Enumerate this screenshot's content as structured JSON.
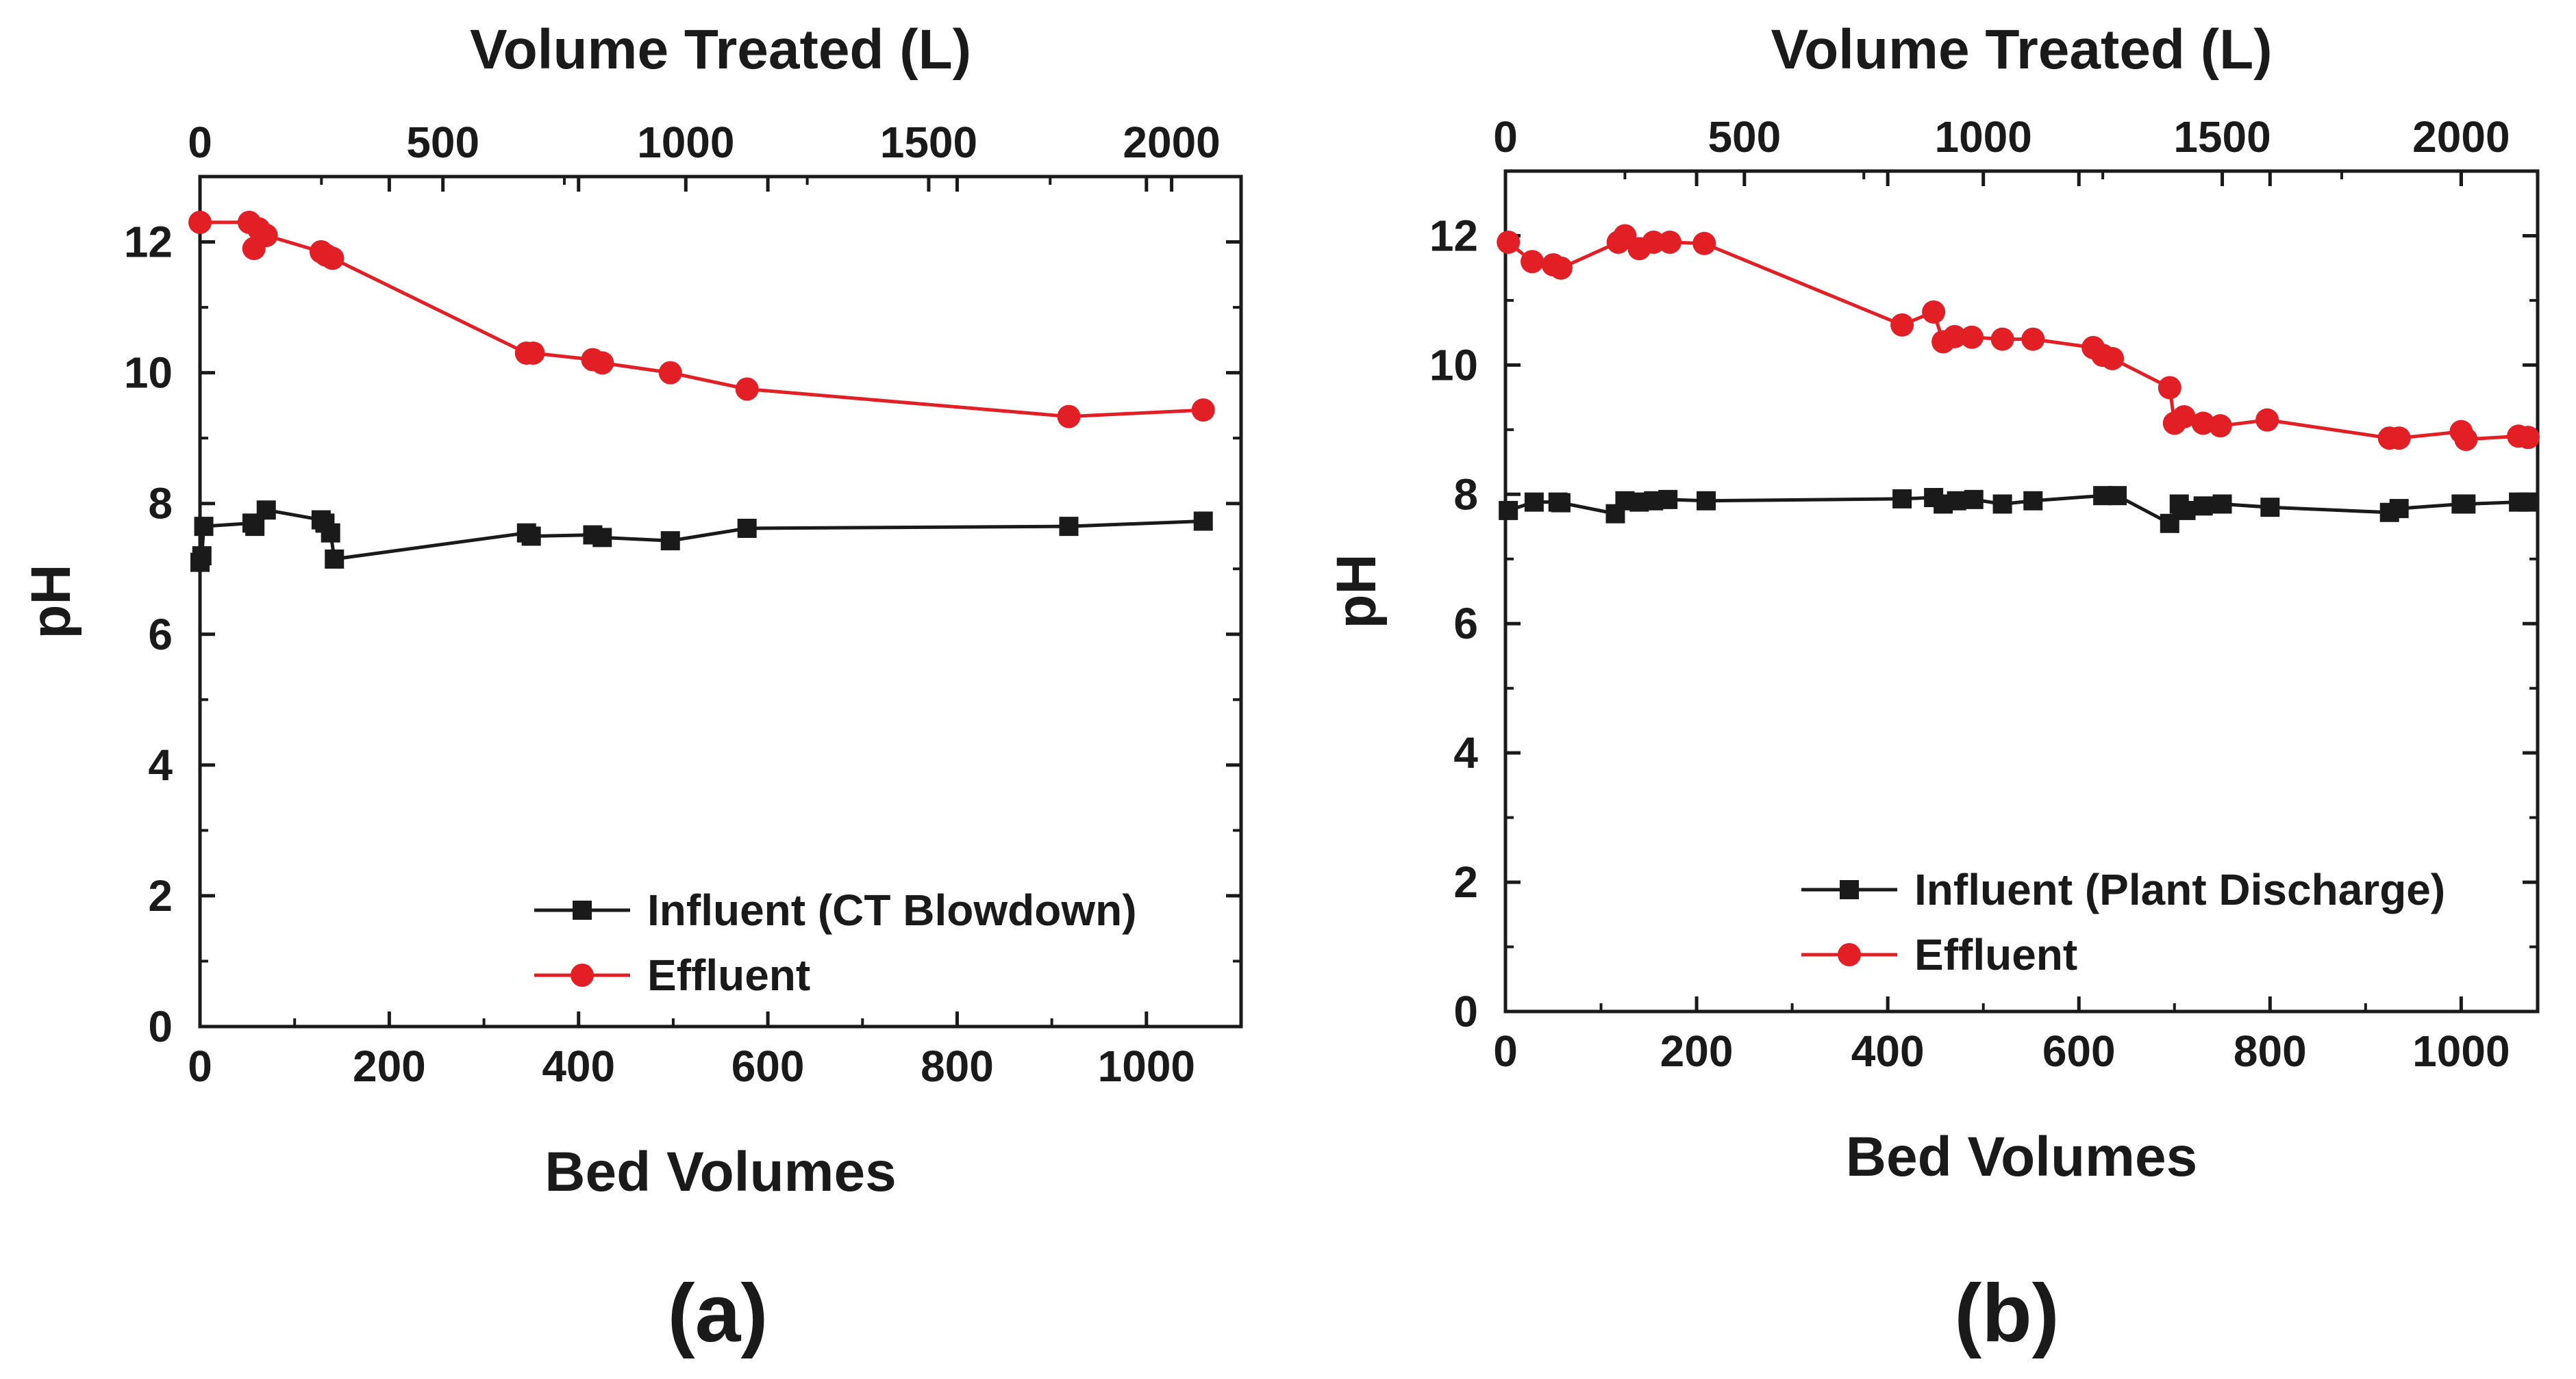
{
  "chart_data": [
    {
      "type": "line",
      "panel_label": "(a)",
      "xlabel": "Bed Volumes",
      "ylabel": "pH",
      "top_xlabel": "Volume Treated (L)",
      "xlim": [
        0,
        1100
      ],
      "ylim": [
        0,
        13
      ],
      "top_xlim": [
        0,
        2143
      ],
      "xticks": [
        0,
        200,
        400,
        600,
        800,
        1000
      ],
      "yticks": [
        0,
        2,
        4,
        6,
        8,
        10,
        12
      ],
      "top_xticks": [
        0,
        500,
        1000,
        1500,
        2000
      ],
      "legend_position": "bottom-right",
      "series": [
        {
          "name": "Influent (CT Blowdown)",
          "color": "#1a1a1a",
          "marker": "square",
          "x": [
            0,
            2,
            4,
            55,
            58,
            70,
            128,
            132,
            138,
            142,
            345,
            350,
            415,
            425,
            497,
            578,
            918,
            1060
          ],
          "y": [
            7.1,
            7.2,
            7.65,
            7.7,
            7.65,
            7.9,
            7.75,
            7.7,
            7.55,
            7.15,
            7.55,
            7.5,
            7.52,
            7.48,
            7.43,
            7.62,
            7.65,
            7.73
          ]
        },
        {
          "name": "Effluent",
          "color": "#e31f26",
          "marker": "circle",
          "x": [
            0,
            52,
            57,
            62,
            70,
            128,
            133,
            140,
            345,
            352,
            415,
            425,
            497,
            578,
            918,
            1060
          ],
          "y": [
            12.3,
            12.3,
            11.9,
            12.2,
            12.1,
            11.85,
            11.8,
            11.75,
            10.3,
            10.3,
            10.2,
            10.15,
            10.0,
            9.75,
            9.33,
            9.43
          ]
        }
      ]
    },
    {
      "type": "line",
      "panel_label": "(b)",
      "xlabel": "Bed Volumes",
      "ylabel": "pH",
      "top_xlabel": "Volume Treated (L)",
      "xlim": [
        0,
        1080
      ],
      "ylim": [
        0,
        13
      ],
      "top_xlim": [
        0,
        2160
      ],
      "xticks": [
        0,
        200,
        400,
        600,
        800,
        1000
      ],
      "yticks": [
        0,
        2,
        4,
        6,
        8,
        10,
        12
      ],
      "top_xticks": [
        0,
        500,
        1000,
        1500,
        2000
      ],
      "legend_position": "bottom-right",
      "series": [
        {
          "name": "Influent (Plant Discharge)",
          "color": "#1a1a1a",
          "marker": "square",
          "x": [
            3,
            30,
            55,
            58,
            115,
            125,
            140,
            155,
            170,
            210,
            415,
            448,
            458,
            472,
            490,
            520,
            552,
            625,
            640,
            695,
            705,
            712,
            730,
            750,
            800,
            925,
            935,
            1000,
            1005,
            1060,
            1070
          ],
          "y": [
            7.75,
            7.88,
            7.88,
            7.87,
            7.7,
            7.9,
            7.88,
            7.9,
            7.92,
            7.9,
            7.93,
            7.95,
            7.85,
            7.9,
            7.92,
            7.85,
            7.9,
            7.98,
            7.98,
            7.55,
            7.85,
            7.75,
            7.82,
            7.85,
            7.8,
            7.72,
            7.78,
            7.85,
            7.85,
            7.88,
            7.88
          ],
          "_note": ""
        },
        {
          "name": "Effluent",
          "color": "#e31f26",
          "marker": "circle",
          "x": [
            3,
            28,
            50,
            58,
            118,
            125,
            140,
            155,
            172,
            208,
            415,
            448,
            458,
            470,
            488,
            520,
            552,
            615,
            625,
            635,
            695,
            700,
            710,
            730,
            748,
            797,
            925,
            935,
            1000,
            1005,
            1060,
            1070
          ],
          "y": [
            11.9,
            11.6,
            11.55,
            11.5,
            11.9,
            12.0,
            11.8,
            11.9,
            11.9,
            11.88,
            10.62,
            10.82,
            10.36,
            10.44,
            10.43,
            10.4,
            10.4,
            10.27,
            10.15,
            10.1,
            9.65,
            9.1,
            9.2,
            9.1,
            9.06,
            9.15,
            8.87,
            8.87,
            8.97,
            8.85,
            8.9,
            8.88
          ]
        }
      ]
    }
  ]
}
